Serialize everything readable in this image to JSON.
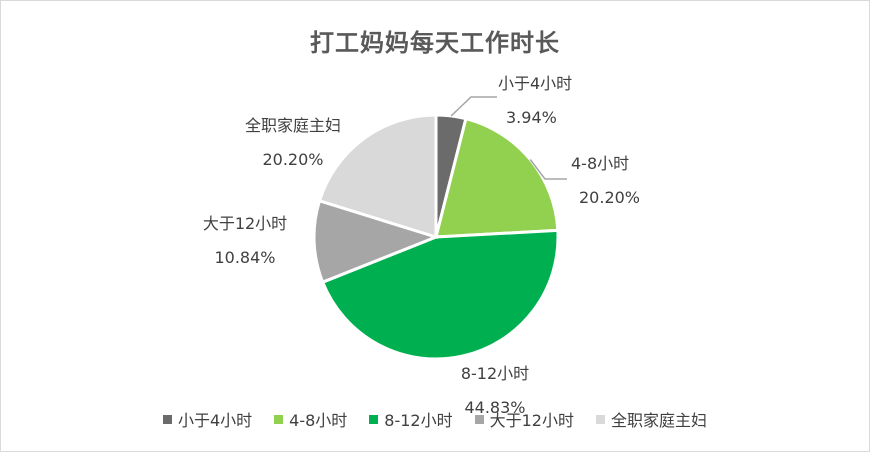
{
  "chart_data": {
    "type": "pie",
    "title": "打工妈妈每天工作时长",
    "categories": [
      "小于4小时",
      "4-8小时",
      "8-12小时",
      "大于12小时",
      "全职家庭主妇"
    ],
    "values": [
      3.94,
      20.2,
      44.83,
      10.84,
      20.2
    ],
    "value_labels": [
      "3.94%",
      "20.20%",
      "44.83%",
      "10.84%",
      "20.20%"
    ],
    "colors": [
      "#6b6b6b",
      "#92d050",
      "#00b050",
      "#a6a6a6",
      "#d9d9d9"
    ],
    "legend_position": "bottom",
    "start_angle_deg": 0,
    "direction": "clockwise"
  }
}
